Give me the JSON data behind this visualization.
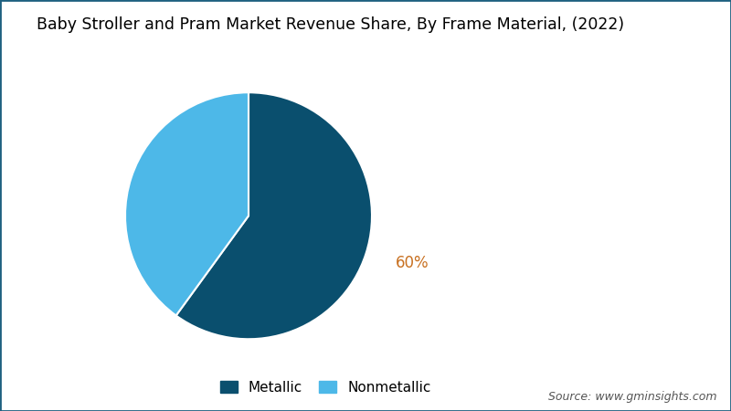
{
  "title": "Baby Stroller and Pram Market Revenue Share, By Frame Material, (2022)",
  "slices": [
    60,
    40
  ],
  "labels": [
    "Metallic",
    "Nonmetallic"
  ],
  "colors": [
    "#0a4f6e",
    "#4db8e8"
  ],
  "autopct_label": "60%",
  "legend_labels": [
    "Metallic",
    "Nonmetallic"
  ],
  "source_text": "Source: www.gminsights.com",
  "background_color": "#ffffff",
  "border_color": "#1e6080",
  "title_fontsize": 12.5,
  "legend_fontsize": 11,
  "source_fontsize": 9,
  "pct_fontsize": 12,
  "pct_color": "#c87020",
  "startangle": 90
}
